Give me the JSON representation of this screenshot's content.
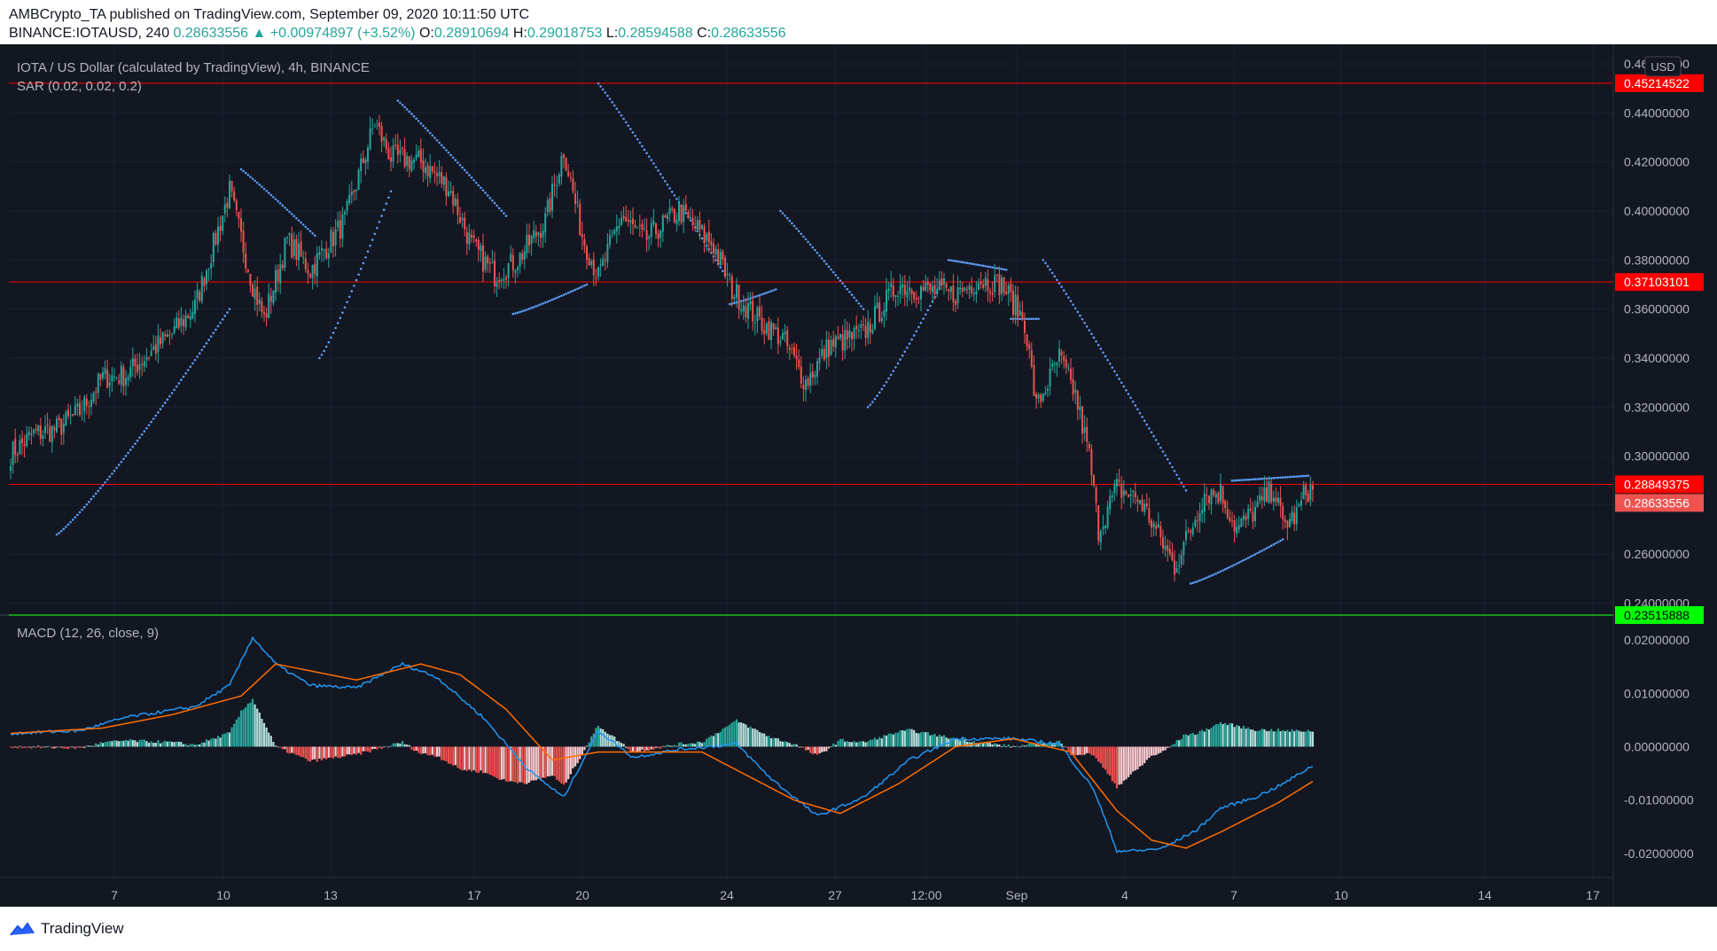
{
  "header": {
    "published": "AMBCrypto_TA published on TradingView.com, September 09, 2020 10:11:50 UTC",
    "symbol": "BINANCE:IOTAUSD, 240",
    "price": "0.28633556",
    "change": "▲ +0.00974897 (+3.52%)",
    "o_label": "O:",
    "o": "0.28910694",
    "h_label": "H:",
    "h": "0.29018753",
    "l_label": "L:",
    "l": "0.28594588",
    "c_label": "C:",
    "c": "0.28633556"
  },
  "footer": {
    "brand": "TradingView",
    "logo_icon": "tradingview-logo-icon"
  },
  "colors": {
    "bg": "#131722",
    "grid": "#1c2030",
    "up": "#26a69a",
    "down": "#ef5350",
    "sar": "#5b9cf6",
    "macd": "#2196f3",
    "signal": "#ff6d00",
    "hist_up_strong": "#26a69a",
    "hist_up_weak": "#b2dfdb",
    "hist_down_strong": "#ef5350",
    "hist_down_weak": "#ffcdd2",
    "support_resistance": "#ff0000",
    "support_low": "#00ff00",
    "text": "#b2b5be"
  },
  "chart_data": [
    {
      "type": "candlestick",
      "title": "IOTA / US Dollar (calculated by TradingView), 4h, BINANCE",
      "indicator_label": "SAR (0.02, 0.02, 0.2)",
      "currency": "USD",
      "ylim": [
        0.2355,
        0.468
      ],
      "y_ticks": [
        "0.24000000",
        "0.26000000",
        "0.28000000",
        "0.30000000",
        "0.32000000",
        "0.34000000",
        "0.36000000",
        "0.38000000",
        "0.40000000",
        "0.42000000",
        "0.44000000",
        "0.46000000"
      ],
      "x_ticks": [
        "7",
        "10",
        "13",
        "17",
        "20",
        "24",
        "27",
        "12:00",
        "Sep",
        "4",
        "7",
        "10",
        "14",
        "17"
      ],
      "horizontal_lines": [
        {
          "value": 0.45214522,
          "label": "0.45214522",
          "color": "#ff0000"
        },
        {
          "value": 0.37103101,
          "label": "0.37103101",
          "color": "#ff0000"
        },
        {
          "value": 0.28849375,
          "label": "0.28849375",
          "color": "#ff0000"
        },
        {
          "value": 0.23515888,
          "label": "0.23515888",
          "color": "#00ff00"
        }
      ],
      "last_price": {
        "value": 0.28633556,
        "label": "0.28633556"
      },
      "price_anchors": [
        [
          0,
          0.301
        ],
        [
          10,
          0.309
        ],
        [
          20,
          0.311
        ],
        [
          30,
          0.318
        ],
        [
          40,
          0.332
        ],
        [
          50,
          0.333
        ],
        [
          60,
          0.342
        ],
        [
          70,
          0.35
        ],
        [
          80,
          0.361
        ],
        [
          95,
          0.408
        ],
        [
          105,
          0.37
        ],
        [
          110,
          0.356
        ],
        [
          120,
          0.388
        ],
        [
          130,
          0.376
        ],
        [
          145,
          0.396
        ],
        [
          158,
          0.436
        ],
        [
          165,
          0.422
        ],
        [
          178,
          0.42
        ],
        [
          190,
          0.41
        ],
        [
          200,
          0.386
        ],
        [
          210,
          0.374
        ],
        [
          220,
          0.38
        ],
        [
          232,
          0.396
        ],
        [
          240,
          0.425
        ],
        [
          248,
          0.39
        ],
        [
          255,
          0.373
        ],
        [
          265,
          0.398
        ],
        [
          275,
          0.388
        ],
        [
          290,
          0.4
        ],
        [
          305,
          0.386
        ],
        [
          313,
          0.368
        ],
        [
          325,
          0.355
        ],
        [
          335,
          0.348
        ],
        [
          345,
          0.33
        ],
        [
          355,
          0.345
        ],
        [
          370,
          0.35
        ],
        [
          385,
          0.37
        ],
        [
          395,
          0.368
        ],
        [
          410,
          0.366
        ],
        [
          420,
          0.372
        ],
        [
          430,
          0.37
        ],
        [
          440,
          0.355
        ],
        [
          445,
          0.32
        ],
        [
          455,
          0.34
        ],
        [
          462,
          0.325
        ],
        [
          468,
          0.3
        ],
        [
          472,
          0.27
        ],
        [
          480,
          0.287
        ],
        [
          490,
          0.282
        ],
        [
          498,
          0.268
        ],
        [
          505,
          0.255
        ],
        [
          512,
          0.27
        ],
        [
          518,
          0.285
        ],
        [
          525,
          0.285
        ],
        [
          532,
          0.27
        ],
        [
          540,
          0.278
        ],
        [
          548,
          0.287
        ],
        [
          552,
          0.272
        ],
        [
          558,
          0.276
        ],
        [
          562,
          0.286
        ]
      ],
      "sar_segments": [
        {
          "side": "below",
          "from": [
            20,
            0.268
          ],
          "to": [
            95,
            0.36
          ]
        },
        {
          "side": "above",
          "from": [
            100,
            0.417
          ],
          "to": [
            132,
            0.39
          ]
        },
        {
          "side": "below",
          "from": [
            134,
            0.34
          ],
          "to": [
            165,
            0.408
          ]
        },
        {
          "side": "above",
          "from": [
            168,
            0.445
          ],
          "to": [
            215,
            0.398
          ]
        },
        {
          "side": "below",
          "from": [
            218,
            0.358
          ],
          "to": [
            250,
            0.37
          ]
        },
        {
          "side": "above",
          "from": [
            255,
            0.452
          ],
          "to": [
            310,
            0.374
          ]
        },
        {
          "side": "below",
          "from": [
            312,
            0.362
          ],
          "to": [
            332,
            0.368
          ]
        },
        {
          "side": "above",
          "from": [
            334,
            0.4
          ],
          "to": [
            370,
            0.36
          ]
        },
        {
          "side": "below",
          "from": [
            372,
            0.32
          ],
          "to": [
            405,
            0.372
          ]
        },
        {
          "side": "above",
          "from": [
            407,
            0.38
          ],
          "to": [
            432,
            0.376
          ]
        },
        {
          "side": "below",
          "from": [
            434,
            0.356
          ],
          "to": [
            446,
            0.356
          ]
        },
        {
          "side": "above",
          "from": [
            448,
            0.38
          ],
          "to": [
            510,
            0.286
          ]
        },
        {
          "side": "below",
          "from": [
            512,
            0.248
          ],
          "to": [
            552,
            0.266
          ]
        },
        {
          "side": "above",
          "from": [
            530,
            0.29
          ],
          "to": [
            563,
            0.292
          ]
        }
      ]
    },
    {
      "type": "macd",
      "title": "MACD (12, 26, close, 9)",
      "ylim": [
        -0.0245,
        0.0245
      ],
      "y_ticks": [
        "0.02000000",
        "0.01000000",
        "0.00000000",
        "-0.01000000",
        "-0.02000000"
      ],
      "macd_anchors": [
        [
          0,
          0.0025
        ],
        [
          30,
          0.003
        ],
        [
          50,
          0.0055
        ],
        [
          80,
          0.0075
        ],
        [
          95,
          0.0115
        ],
        [
          105,
          0.0205
        ],
        [
          115,
          0.0155
        ],
        [
          130,
          0.0115
        ],
        [
          150,
          0.011
        ],
        [
          170,
          0.0155
        ],
        [
          185,
          0.013
        ],
        [
          205,
          0.0055
        ],
        [
          225,
          -0.0045
        ],
        [
          240,
          -0.0095
        ],
        [
          255,
          0.003
        ],
        [
          270,
          -0.002
        ],
        [
          290,
          -0.0005
        ],
        [
          315,
          0.0005
        ],
        [
          330,
          -0.006
        ],
        [
          350,
          -0.013
        ],
        [
          370,
          -0.0095
        ],
        [
          390,
          -0.0025
        ],
        [
          410,
          0.0015
        ],
        [
          435,
          0.0015
        ],
        [
          455,
          0.0005
        ],
        [
          470,
          -0.008
        ],
        [
          480,
          -0.0195
        ],
        [
          490,
          -0.0195
        ],
        [
          500,
          -0.019
        ],
        [
          515,
          -0.0155
        ],
        [
          525,
          -0.0115
        ],
        [
          540,
          -0.0095
        ],
        [
          552,
          -0.007
        ],
        [
          565,
          -0.0035
        ]
      ],
      "signal_anchors": [
        [
          0,
          0.0025
        ],
        [
          40,
          0.0035
        ],
        [
          70,
          0.006
        ],
        [
          100,
          0.0095
        ],
        [
          115,
          0.0155
        ],
        [
          150,
          0.0125
        ],
        [
          178,
          0.0155
        ],
        [
          195,
          0.0135
        ],
        [
          215,
          0.007
        ],
        [
          235,
          -0.0025
        ],
        [
          255,
          -0.001
        ],
        [
          280,
          -0.001
        ],
        [
          300,
          -0.001
        ],
        [
          340,
          -0.01
        ],
        [
          360,
          -0.0125
        ],
        [
          385,
          -0.007
        ],
        [
          410,
          0
        ],
        [
          435,
          0.0015
        ],
        [
          460,
          -0.001
        ],
        [
          480,
          -0.012
        ],
        [
          495,
          -0.0175
        ],
        [
          510,
          -0.019
        ],
        [
          525,
          -0.016
        ],
        [
          550,
          -0.0105
        ],
        [
          565,
          -0.0065
        ]
      ]
    }
  ]
}
